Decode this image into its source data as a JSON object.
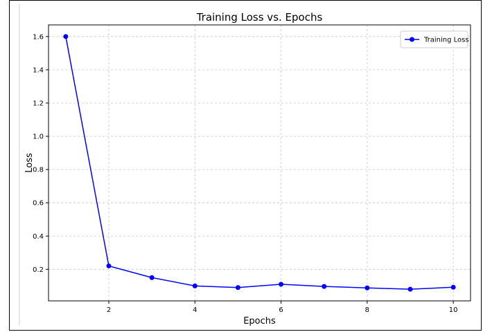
{
  "chart_data": {
    "type": "line",
    "title": "Training Loss vs. Epochs",
    "xlabel": "Epochs",
    "ylabel": "Loss",
    "x": [
      1,
      2,
      3,
      4,
      5,
      6,
      7,
      8,
      9,
      10
    ],
    "series": [
      {
        "name": "Training Loss",
        "values": [
          1.6,
          0.22,
          0.15,
          0.1,
          0.09,
          0.11,
          0.097,
          0.088,
          0.08,
          0.092
        ],
        "color": "#0000ff"
      }
    ],
    "xlim": [
      0.6,
      10.4
    ],
    "ylim": [
      0.01,
      1.67
    ],
    "xticks": [
      2,
      4,
      6,
      8,
      10
    ],
    "yticks": [
      0.2,
      0.4,
      0.6,
      0.8,
      1.0,
      1.2,
      1.4,
      1.6
    ],
    "xtick_labels": [
      "2",
      "4",
      "6",
      "8",
      "10"
    ],
    "ytick_labels": [
      "0.2",
      "0.4",
      "0.6",
      "0.8",
      "1.0",
      "1.2",
      "1.4",
      "1.6"
    ],
    "grid": true,
    "legend_position": "top-right"
  }
}
